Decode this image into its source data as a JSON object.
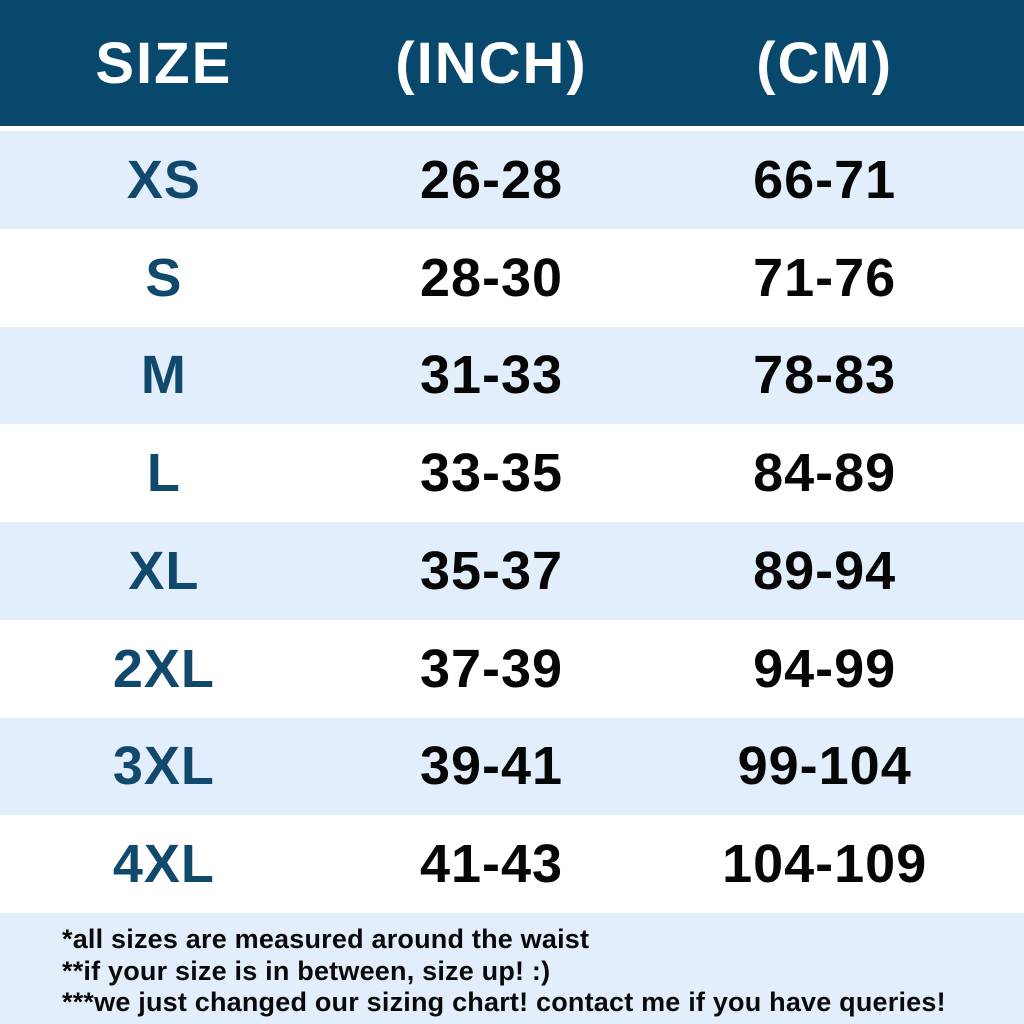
{
  "colors": {
    "header_bg": "#07486c",
    "row_alt_bg": "#e2eefb",
    "row_bg": "#ffffff",
    "size_label": "#11496c",
    "value_text": "#060606",
    "header_text": "#ffffff",
    "footer_text": "#0a0a0a"
  },
  "header": {
    "col_size": "SIZE",
    "col_inch": "(INCH)",
    "col_cm": "(CM)"
  },
  "rows": [
    {
      "size": "XS",
      "inch": "26-28",
      "cm": "66-71"
    },
    {
      "size": "S",
      "inch": "28-30",
      "cm": "71-76"
    },
    {
      "size": "M",
      "inch": "31-33",
      "cm": "78-83"
    },
    {
      "size": "L",
      "inch": "33-35",
      "cm": "84-89"
    },
    {
      "size": "XL",
      "inch": "35-37",
      "cm": "89-94"
    },
    {
      "size": "2XL",
      "inch": "37-39",
      "cm": "94-99"
    },
    {
      "size": "3XL",
      "inch": "39-41",
      "cm": "99-104"
    },
    {
      "size": "4XL",
      "inch": "41-43",
      "cm": "104-109"
    }
  ],
  "footnotes": [
    "*all sizes are measured around the waist",
    "**if your size is in between, size up! :)",
    "***we just changed our sizing chart! contact me if you have queries!"
  ],
  "chart_data": {
    "type": "table",
    "title": "Size chart (waist measurements)",
    "columns": [
      "SIZE",
      "(INCH)",
      "(CM)"
    ],
    "rows": [
      [
        "XS",
        "26-28",
        "66-71"
      ],
      [
        "S",
        "28-30",
        "71-76"
      ],
      [
        "M",
        "31-33",
        "78-83"
      ],
      [
        "L",
        "33-35",
        "84-89"
      ],
      [
        "XL",
        "35-37",
        "89-94"
      ],
      [
        "2XL",
        "37-39",
        "94-99"
      ],
      [
        "3XL",
        "39-41",
        "99-104"
      ],
      [
        "4XL",
        "41-43",
        "104-109"
      ]
    ],
    "notes": [
      "*all sizes are measured around the waist",
      "**if your size is in between, size up! :)",
      "***we just changed our sizing chart! contact me if you have queries!"
    ],
    "layout_hints": {
      "alternating_row_colors": true,
      "first_data_row_bg": "#e2eefb",
      "header_bg": "#07486c"
    }
  }
}
